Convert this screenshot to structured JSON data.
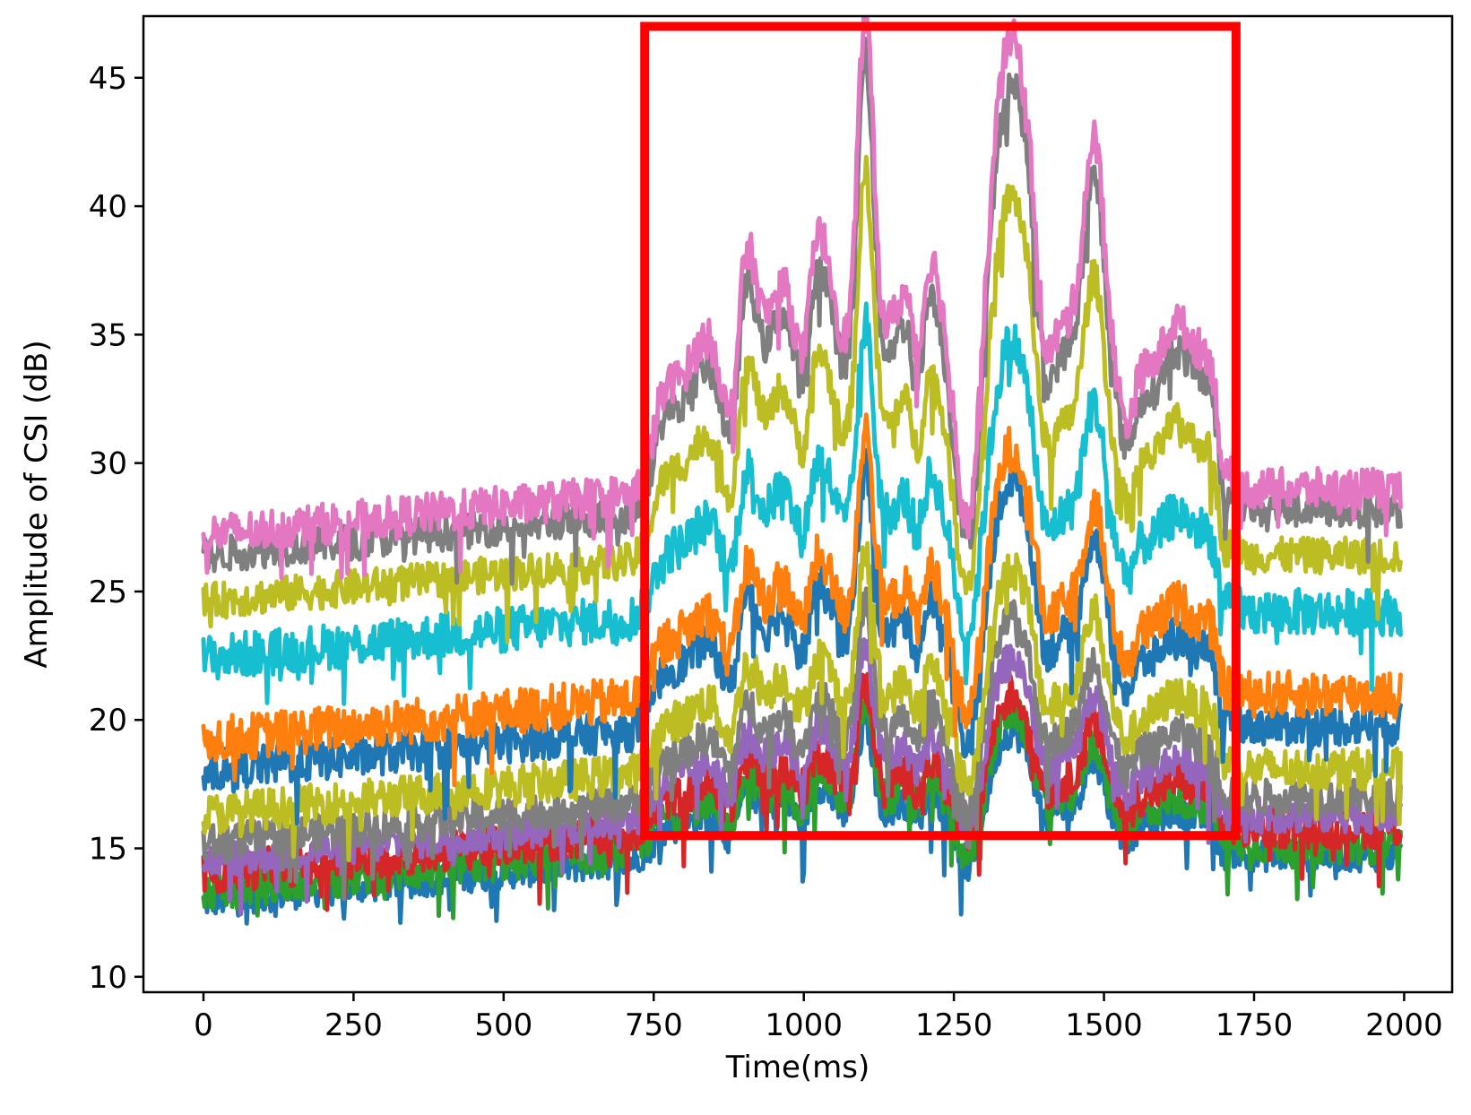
{
  "chart_data": {
    "type": "line",
    "title": "",
    "xlabel": "Time(ms)",
    "ylabel": "Amplitude of CSI (dB)",
    "xlim": [
      -100,
      2080
    ],
    "ylim": [
      9.4,
      47.4
    ],
    "x_ticks": [
      0,
      250,
      500,
      750,
      1000,
      1250,
      1500,
      1750,
      2000
    ],
    "x_tick_labels": [
      "0",
      "250",
      "500",
      "750",
      "1000",
      "1250",
      "1500",
      "1750",
      "2000"
    ],
    "y_ticks": [
      10,
      15,
      20,
      25,
      30,
      35,
      40,
      45
    ],
    "y_tick_labels": [
      "10",
      "15",
      "20",
      "25",
      "30",
      "35",
      "40",
      "45"
    ],
    "grid": false,
    "legend": "none",
    "x_range": [
      0,
      1994
    ],
    "event_window": {
      "x": [
        735,
        1720
      ],
      "y": [
        15.5,
        47.0
      ],
      "color": "#ff0000"
    },
    "series": [
      {
        "color": "#e377c2",
        "baseline": 27.2,
        "event_gain": 1.0,
        "noise": 0.8
      },
      {
        "color": "#7f7f7f",
        "baseline": 26.4,
        "event_gain": 0.95,
        "noise": 0.7
      },
      {
        "color": "#bcbd22",
        "baseline": 24.6,
        "event_gain": 0.8,
        "noise": 0.7
      },
      {
        "color": "#17becf",
        "baseline": 22.4,
        "event_gain": 0.6,
        "noise": 0.9
      },
      {
        "color": "#ff7f0e",
        "baseline": 19.2,
        "event_gain": 0.55,
        "noise": 0.9
      },
      {
        "color": "#1f77b4",
        "baseline": 18.0,
        "event_gain": 0.55,
        "noise": 0.8
      },
      {
        "color": "#bcbd22",
        "baseline": 16.3,
        "event_gain": 0.45,
        "noise": 0.8
      },
      {
        "color": "#7f7f7f",
        "baseline": 15.2,
        "event_gain": 0.4,
        "noise": 0.7
      },
      {
        "color": "#9467bd",
        "baseline": 14.5,
        "event_gain": 0.35,
        "noise": 0.7
      },
      {
        "color": "#d62728",
        "baseline": 14.0,
        "event_gain": 0.3,
        "noise": 0.8
      },
      {
        "color": "#2ca02c",
        "baseline": 13.3,
        "event_gain": 0.3,
        "noise": 0.7
      },
      {
        "color": "#1f77b4",
        "baseline": 12.9,
        "event_gain": 0.28,
        "noise": 0.6
      }
    ]
  }
}
